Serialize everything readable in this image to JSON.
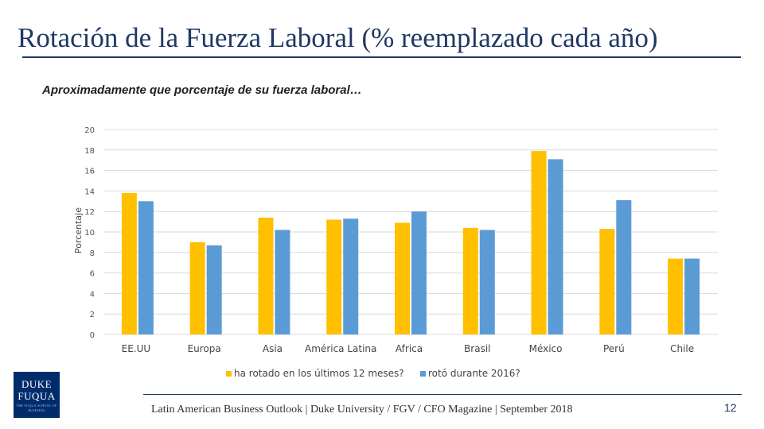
{
  "header": {
    "title": "Rotación de la Fuerza Laboral (% reemplazado cada año)",
    "subtitle": "Aproximadamente que porcentaje de su fuerza laboral…"
  },
  "legend": [
    {
      "label": "ha rotado en los últimos 12 meses?",
      "color": "#ffc000"
    },
    {
      "label": "rotó durante 2016?",
      "color": "#5b9bd5"
    }
  ],
  "footer": {
    "text": "Latin American Business Outlook | Duke University / FGV / CFO Magazine | September 2018",
    "page_number": "12"
  },
  "logo": {
    "line1": "DUKE",
    "line2": "FUQUA",
    "tagline": "THE FUQUA SCHOOL OF BUSINESS"
  },
  "chart_data": {
    "type": "bar",
    "title": "",
    "xlabel": "",
    "ylabel": "Porcentaje",
    "ylim": [
      0,
      20
    ],
    "yticks": [
      0,
      2,
      4,
      6,
      8,
      10,
      12,
      14,
      16,
      18,
      20
    ],
    "grid": true,
    "categories": [
      "EE.UU",
      "Europa",
      "Asia",
      "América Latina",
      "Africa",
      "Brasil",
      "México",
      "Perú",
      "Chile"
    ],
    "series": [
      {
        "name": "ha rotado en los últimos 12 meses?",
        "color": "#ffc000",
        "values": [
          13.8,
          9.0,
          11.4,
          11.2,
          10.9,
          10.4,
          17.9,
          10.3,
          7.4
        ]
      },
      {
        "name": "rotó durante 2016?",
        "color": "#5b9bd5",
        "values": [
          13.0,
          8.7,
          10.2,
          11.3,
          12.0,
          10.2,
          17.1,
          13.1,
          7.4
        ]
      }
    ]
  }
}
